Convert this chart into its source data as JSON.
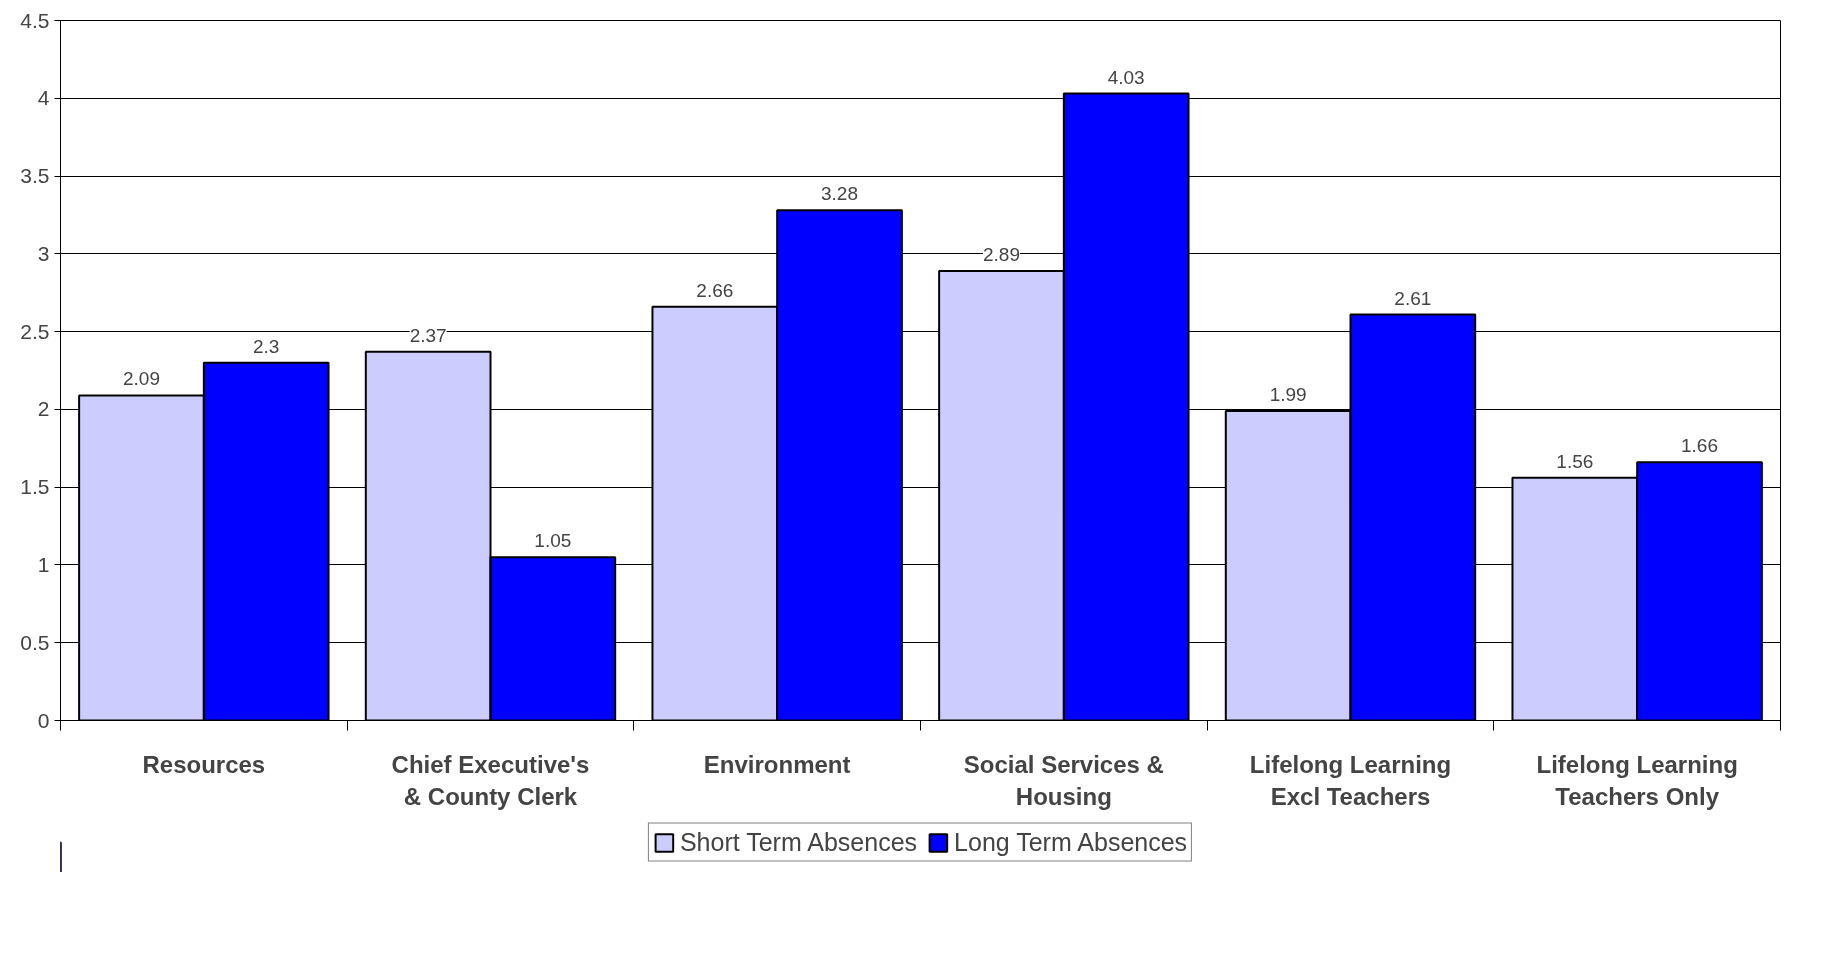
{
  "chart_data": {
    "type": "bar",
    "categories": [
      "Resources",
      "Chief Executive's & County Clerk",
      "Environment",
      "Social Services & Housing",
      "Lifelong Learning Excl Teachers",
      "Lifelong Learning Teachers Only"
    ],
    "series": [
      {
        "name": "Short Term Absences",
        "color": "#ccccff",
        "values": [
          2.09,
          2.37,
          2.66,
          2.89,
          1.99,
          1.56
        ]
      },
      {
        "name": "Long Term Absences",
        "color": "#0000ff",
        "values": [
          2.3,
          1.05,
          3.28,
          4.03,
          2.61,
          1.66
        ]
      }
    ],
    "ylim": [
      0,
      4.5
    ],
    "yticks": [
      0,
      0.5,
      1,
      1.5,
      2,
      2.5,
      3,
      3.5,
      4,
      4.5
    ],
    "grid": "y",
    "legend": "bottom",
    "data_labels": true
  }
}
